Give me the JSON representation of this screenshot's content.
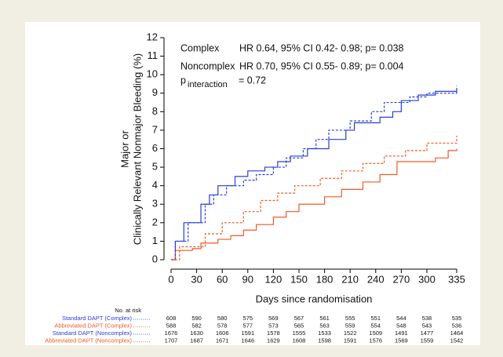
{
  "chart_data": {
    "type": "line",
    "step": true,
    "ylabel": [
      "Major or",
      "Clinically Relevant Nonmajor Bleeding  (%)"
    ],
    "xlabel": "Days since randomisation",
    "xlim": [
      0,
      335
    ],
    "xticks": [
      0,
      30,
      60,
      90,
      120,
      150,
      180,
      210,
      240,
      270,
      300,
      335
    ],
    "ylim": [
      0,
      12
    ],
    "yticks": [
      0,
      1,
      2,
      3,
      4,
      5,
      6,
      7,
      8,
      9,
      10,
      11,
      12
    ],
    "annotations": [
      {
        "label": "Complex",
        "text": "HR 0.64, 95% CI 0.42- 0.98; p= 0.038"
      },
      {
        "label": "Noncomplex",
        "text": "HR 0.70, 95% CI 0.55- 0.89; p= 0.004"
      }
    ],
    "interaction": {
      "p": "p",
      "sub": "interaction",
      "text": "= 0.72"
    },
    "risk_title": "No. at risk",
    "series": [
      {
        "name": "Standard DAPT (Complex)",
        "color": "#2b3fd6",
        "dashed": false,
        "x": [
          0,
          5,
          15,
          35,
          45,
          55,
          75,
          90,
          110,
          125,
          140,
          160,
          185,
          205,
          215,
          245,
          260,
          270,
          290,
          310,
          335
        ],
        "values": [
          0,
          1,
          2,
          3,
          3.5,
          4,
          4.5,
          4.8,
          5,
          5.3,
          5.6,
          6,
          6.5,
          7,
          7.4,
          7.7,
          8,
          8.6,
          8.9,
          9.1,
          9.2
        ],
        "at_risk": [
          608,
          590,
          580,
          575,
          569,
          567,
          561,
          555,
          551,
          544,
          538,
          535
        ]
      },
      {
        "name": "Abbreviated DAPT (Complex)",
        "color": "#f05a28",
        "dashed": false,
        "x": [
          0,
          5,
          25,
          35,
          55,
          70,
          85,
          100,
          120,
          135,
          150,
          180,
          200,
          225,
          245,
          265,
          310,
          325,
          335
        ],
        "values": [
          0,
          0.5,
          0.6,
          0.9,
          1.1,
          1.3,
          1.6,
          1.9,
          2.3,
          2.6,
          3,
          3.4,
          3.8,
          4.2,
          4.6,
          5.3,
          5.5,
          5.9,
          6
        ],
        "at_risk": [
          588,
          582,
          578,
          577,
          573,
          565,
          563,
          559,
          554,
          548,
          543,
          536
        ]
      },
      {
        "name": "Standard DAPT (Noncomplex)",
        "color": "#2b3fd6",
        "dashed": true,
        "x": [
          0,
          5,
          20,
          40,
          50,
          65,
          85,
          100,
          120,
          135,
          155,
          170,
          185,
          210,
          235,
          250,
          280,
          300,
          335
        ],
        "values": [
          0,
          1,
          2,
          3,
          3.5,
          4,
          4.3,
          4.6,
          5,
          5.5,
          6,
          6.5,
          7,
          7.5,
          8,
          8.5,
          8.8,
          9,
          9.4
        ],
        "at_risk": [
          1676,
          1630,
          1606,
          1591,
          1578,
          1555,
          1533,
          1522,
          1509,
          1491,
          1477,
          1464
        ]
      },
      {
        "name": "Abbreviated DAPT (Noncomplex)",
        "color": "#f05a28",
        "dashed": true,
        "x": [
          0,
          10,
          40,
          60,
          85,
          105,
          125,
          145,
          175,
          200,
          225,
          250,
          275,
          300,
          335
        ],
        "values": [
          0,
          0.7,
          1.4,
          2,
          2.6,
          3.2,
          3.6,
          4,
          4.4,
          4.8,
          5.2,
          5.6,
          5.9,
          6.3,
          6.7
        ],
        "at_risk": [
          1707,
          1687,
          1671,
          1646,
          1629,
          1608,
          1598,
          1591,
          1576,
          1569,
          1559,
          1542
        ]
      }
    ]
  }
}
